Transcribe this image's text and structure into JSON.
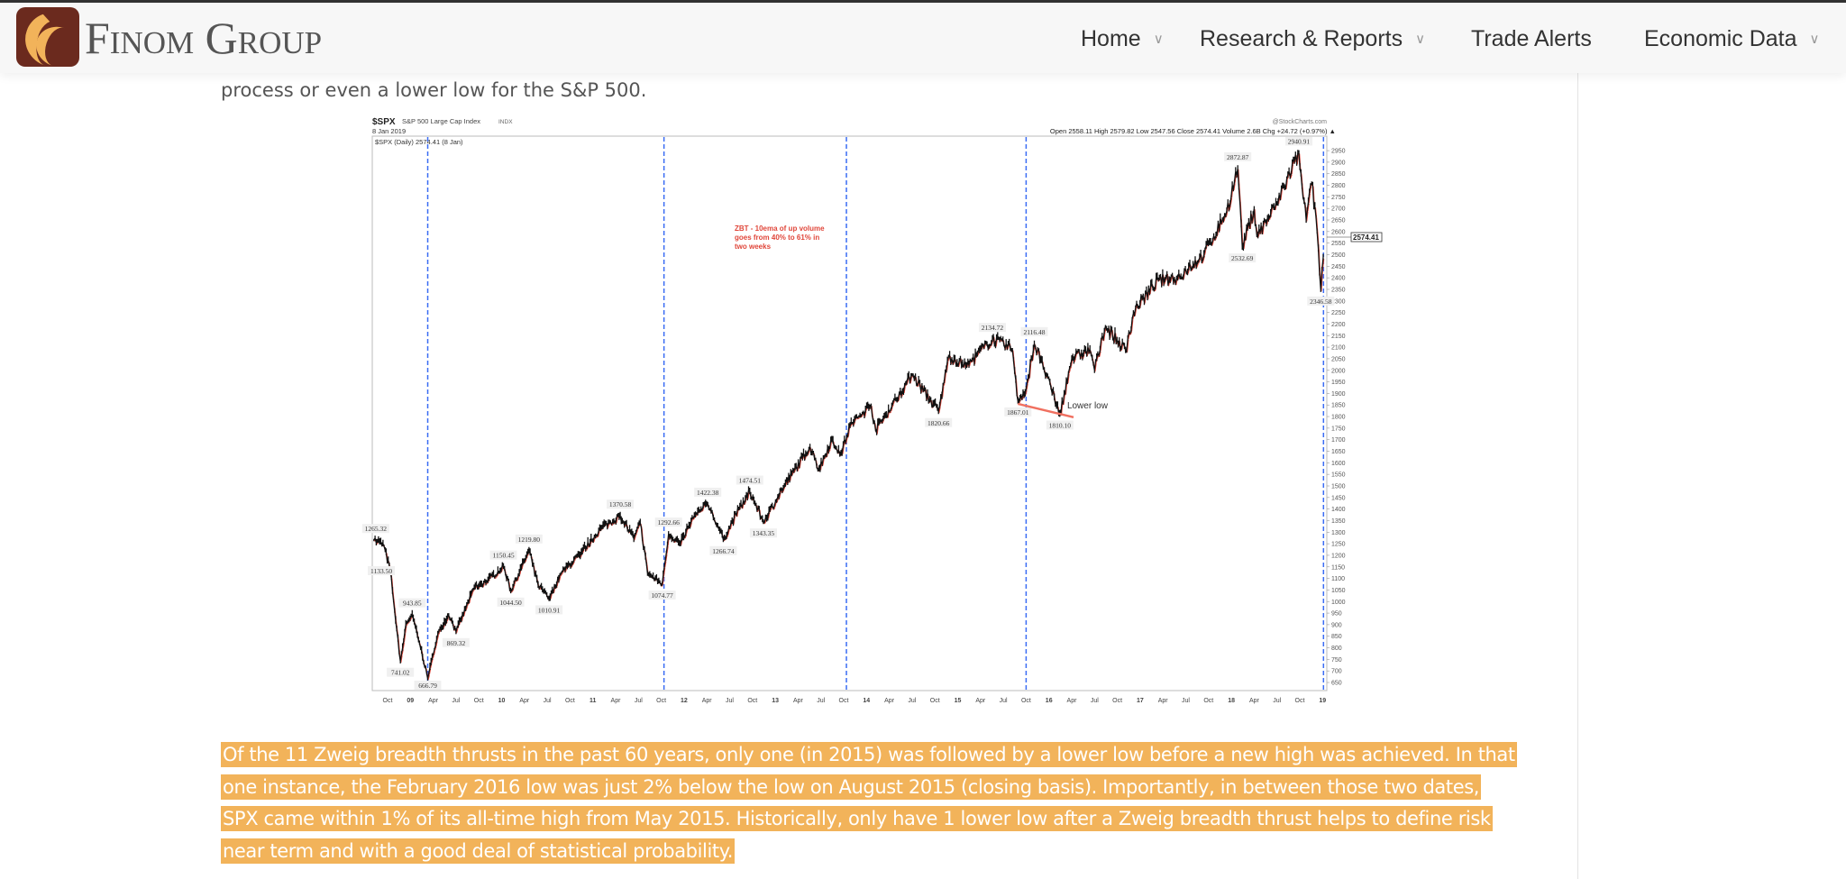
{
  "header": {
    "logo_text": "Finom Group",
    "nav": [
      {
        "label": "Home",
        "has_dropdown": true
      },
      {
        "label": "Research & Reports",
        "has_dropdown": true
      },
      {
        "label": "Trade Alerts",
        "has_dropdown": false
      },
      {
        "label": "Economic Data",
        "has_dropdown": true
      }
    ]
  },
  "article": {
    "partial_text": "process or even a lower low for the S&P 500.",
    "highlighted_paragraph": "Of the 11 Zweig breadth thrusts in the past 60 years, only one (in 2015) was followed by a lower low before a new high was achieved. In that one instance, the February 2016 low was just 2% below the low on August 2015 (closing basis). Importantly, in between those two dates, SPX came within 1% of its all-time high from May 2015. Historically, only have 1 lower low after a Zweig breadth thrust helps to define risk near term and with a good deal of statistical probability.",
    "highlight_color": "#f2b35a"
  },
  "chart_data": {
    "type": "line",
    "symbol": "$SPX",
    "title": "S&P 500 Large Cap Index",
    "exchange": "INDX",
    "date": "8 Jan 2019",
    "watermark": "@StockCharts.com",
    "ohlc_line": "Open 2558.11  High 2579.82  Low 2547.56  Close 2574.41  Volume 2.6B  Chg +24.72 (+0.97%) ▲",
    "legend": "$SPX (Daily) 2574.41 (8 Jan)",
    "last_value_label": "2574.41",
    "ylim": [
      650,
      2950
    ],
    "ytick_step": 50,
    "xticks": [
      {
        "t": 2008.75,
        "label": "Oct"
      },
      {
        "t": 2009.0,
        "label": "09",
        "bold": true
      },
      {
        "t": 2009.25,
        "label": "Apr"
      },
      {
        "t": 2009.5,
        "label": "Jul"
      },
      {
        "t": 2009.75,
        "label": "Oct"
      },
      {
        "t": 2010.0,
        "label": "10",
        "bold": true
      },
      {
        "t": 2010.25,
        "label": "Apr"
      },
      {
        "t": 2010.5,
        "label": "Jul"
      },
      {
        "t": 2010.75,
        "label": "Oct"
      },
      {
        "t": 2011.0,
        "label": "11",
        "bold": true
      },
      {
        "t": 2011.25,
        "label": "Apr"
      },
      {
        "t": 2011.5,
        "label": "Jul"
      },
      {
        "t": 2011.75,
        "label": "Oct"
      },
      {
        "t": 2012.0,
        "label": "12",
        "bold": true
      },
      {
        "t": 2012.25,
        "label": "Apr"
      },
      {
        "t": 2012.5,
        "label": "Jul"
      },
      {
        "t": 2012.75,
        "label": "Oct"
      },
      {
        "t": 2013.0,
        "label": "13",
        "bold": true
      },
      {
        "t": 2013.25,
        "label": "Apr"
      },
      {
        "t": 2013.5,
        "label": "Jul"
      },
      {
        "t": 2013.75,
        "label": "Oct"
      },
      {
        "t": 2014.0,
        "label": "14",
        "bold": true
      },
      {
        "t": 2014.25,
        "label": "Apr"
      },
      {
        "t": 2014.5,
        "label": "Jul"
      },
      {
        "t": 2014.75,
        "label": "Oct"
      },
      {
        "t": 2015.0,
        "label": "15",
        "bold": true
      },
      {
        "t": 2015.25,
        "label": "Apr"
      },
      {
        "t": 2015.5,
        "label": "Jul"
      },
      {
        "t": 2015.75,
        "label": "Oct"
      },
      {
        "t": 2016.0,
        "label": "16",
        "bold": true
      },
      {
        "t": 2016.25,
        "label": "Apr"
      },
      {
        "t": 2016.5,
        "label": "Jul"
      },
      {
        "t": 2016.75,
        "label": "Oct"
      },
      {
        "t": 2017.0,
        "label": "17",
        "bold": true
      },
      {
        "t": 2017.25,
        "label": "Apr"
      },
      {
        "t": 2017.5,
        "label": "Jul"
      },
      {
        "t": 2017.75,
        "label": "Oct"
      },
      {
        "t": 2018.0,
        "label": "18",
        "bold": true
      },
      {
        "t": 2018.25,
        "label": "Apr"
      },
      {
        "t": 2018.5,
        "label": "Jul"
      },
      {
        "t": 2018.75,
        "label": "Oct"
      },
      {
        "t": 2019.0,
        "label": "19",
        "bold": true
      }
    ],
    "series": [
      {
        "name": "$SPX",
        "points": [
          [
            2008.6,
            1265
          ],
          [
            2008.7,
            1250
          ],
          [
            2008.78,
            1133
          ],
          [
            2008.85,
            880
          ],
          [
            2008.89,
            741
          ],
          [
            2008.95,
            900
          ],
          [
            2009.02,
            943
          ],
          [
            2009.1,
            820
          ],
          [
            2009.19,
            667
          ],
          [
            2009.3,
            860
          ],
          [
            2009.42,
            940
          ],
          [
            2009.5,
            869
          ],
          [
            2009.7,
            1060
          ],
          [
            2009.85,
            1090
          ],
          [
            2010.02,
            1150
          ],
          [
            2010.1,
            1045
          ],
          [
            2010.3,
            1219
          ],
          [
            2010.4,
            1070
          ],
          [
            2010.52,
            1011
          ],
          [
            2010.65,
            1120
          ],
          [
            2010.85,
            1200
          ],
          [
            2011.1,
            1320
          ],
          [
            2011.3,
            1370
          ],
          [
            2011.45,
            1270
          ],
          [
            2011.52,
            1340
          ],
          [
            2011.6,
            1120
          ],
          [
            2011.76,
            1075
          ],
          [
            2011.83,
            1293
          ],
          [
            2011.95,
            1250
          ],
          [
            2012.1,
            1360
          ],
          [
            2012.26,
            1422
          ],
          [
            2012.43,
            1267
          ],
          [
            2012.6,
            1400
          ],
          [
            2012.72,
            1475
          ],
          [
            2012.87,
            1343
          ],
          [
            2013.1,
            1500
          ],
          [
            2013.38,
            1670
          ],
          [
            2013.48,
            1573
          ],
          [
            2013.62,
            1700
          ],
          [
            2013.72,
            1640
          ],
          [
            2013.82,
            1760
          ],
          [
            2014.05,
            1850
          ],
          [
            2014.1,
            1740
          ],
          [
            2014.5,
            1980
          ],
          [
            2014.79,
            1821
          ],
          [
            2014.9,
            2060
          ],
          [
            2015.1,
            2020
          ],
          [
            2015.38,
            2135
          ],
          [
            2015.6,
            2090
          ],
          [
            2015.66,
            1867
          ],
          [
            2015.75,
            1920
          ],
          [
            2015.84,
            2116
          ],
          [
            2015.95,
            2000
          ],
          [
            2016.12,
            1810
          ],
          [
            2016.25,
            2050
          ],
          [
            2016.45,
            2090
          ],
          [
            2016.5,
            2000
          ],
          [
            2016.62,
            2190
          ],
          [
            2016.84,
            2085
          ],
          [
            2016.95,
            2270
          ],
          [
            2017.2,
            2390
          ],
          [
            2017.4,
            2400
          ],
          [
            2017.7,
            2500
          ],
          [
            2017.95,
            2690
          ],
          [
            2018.07,
            2873
          ],
          [
            2018.12,
            2533
          ],
          [
            2018.25,
            2700
          ],
          [
            2018.28,
            2580
          ],
          [
            2018.5,
            2720
          ],
          [
            2018.74,
            2941
          ],
          [
            2018.82,
            2650
          ],
          [
            2018.88,
            2810
          ],
          [
            2018.94,
            2600
          ],
          [
            2018.98,
            2347
          ],
          [
            2019.02,
            2574
          ]
        ]
      }
    ],
    "price_labels": [
      {
        "t": 2008.62,
        "v": 1265.32,
        "text": "1265.32",
        "pos": "above"
      },
      {
        "t": 2008.78,
        "v": 1133.5,
        "text": "1133.50",
        "pos": "left"
      },
      {
        "t": 2008.89,
        "v": 741.02,
        "text": "741.02",
        "pos": "below"
      },
      {
        "t": 2009.02,
        "v": 943.85,
        "text": "943.85",
        "pos": "above"
      },
      {
        "t": 2009.19,
        "v": 666.79,
        "text": "666.79",
        "pos": "below"
      },
      {
        "t": 2009.5,
        "v": 869.32,
        "text": "869.32",
        "pos": "below"
      },
      {
        "t": 2010.02,
        "v": 1150.45,
        "text": "1150.45",
        "pos": "above"
      },
      {
        "t": 2010.1,
        "v": 1044.5,
        "text": "1044.50",
        "pos": "below"
      },
      {
        "t": 2010.3,
        "v": 1219.8,
        "text": "1219.80",
        "pos": "above"
      },
      {
        "t": 2010.52,
        "v": 1010.91,
        "text": "1010.91",
        "pos": "below"
      },
      {
        "t": 2011.3,
        "v": 1370.58,
        "text": "1370.58",
        "pos": "above"
      },
      {
        "t": 2011.76,
        "v": 1074.77,
        "text": "1074.77",
        "pos": "below"
      },
      {
        "t": 2011.83,
        "v": 1292.66,
        "text": "1292.66",
        "pos": "above"
      },
      {
        "t": 2012.26,
        "v": 1422.38,
        "text": "1422.38",
        "pos": "above"
      },
      {
        "t": 2012.43,
        "v": 1266.74,
        "text": "1266.74",
        "pos": "below"
      },
      {
        "t": 2012.72,
        "v": 1474.51,
        "text": "1474.51",
        "pos": "above"
      },
      {
        "t": 2012.87,
        "v": 1343.35,
        "text": "1343.35",
        "pos": "below"
      },
      {
        "t": 2014.79,
        "v": 1820.66,
        "text": "1820.66",
        "pos": "below"
      },
      {
        "t": 2015.38,
        "v": 2134.72,
        "text": "2134.72",
        "pos": "above"
      },
      {
        "t": 2015.66,
        "v": 1867.01,
        "text": "1867.01",
        "pos": "below"
      },
      {
        "t": 2015.84,
        "v": 2116.48,
        "text": "2116.48",
        "pos": "above"
      },
      {
        "t": 2016.12,
        "v": 1810.1,
        "text": "1810.10",
        "pos": "below"
      },
      {
        "t": 2018.07,
        "v": 2872.87,
        "text": "2872.87",
        "pos": "above"
      },
      {
        "t": 2018.12,
        "v": 2532.69,
        "text": "2532.69",
        "pos": "below"
      },
      {
        "t": 2018.74,
        "v": 2940.91,
        "text": "2940.91",
        "pos": "above"
      },
      {
        "t": 2018.98,
        "v": 2346.58,
        "text": "2346.58",
        "pos": "below"
      }
    ],
    "zweig_thrust_dates": [
      2009.19,
      2011.78,
      2013.78,
      2015.75,
      2019.01
    ],
    "annotations": {
      "zbt_note": "ZBT - 10ema of up volume goes from 40% to 61% in two weeks",
      "lower_low": "Lower low",
      "lower_low_line": [
        [
          2015.66,
          1855
        ],
        [
          2016.27,
          1797
        ]
      ]
    },
    "colors": {
      "price": "#111111",
      "down": "#e0463a",
      "thrust_line": "#3a6cf4",
      "annotation": "#e0463a"
    }
  }
}
